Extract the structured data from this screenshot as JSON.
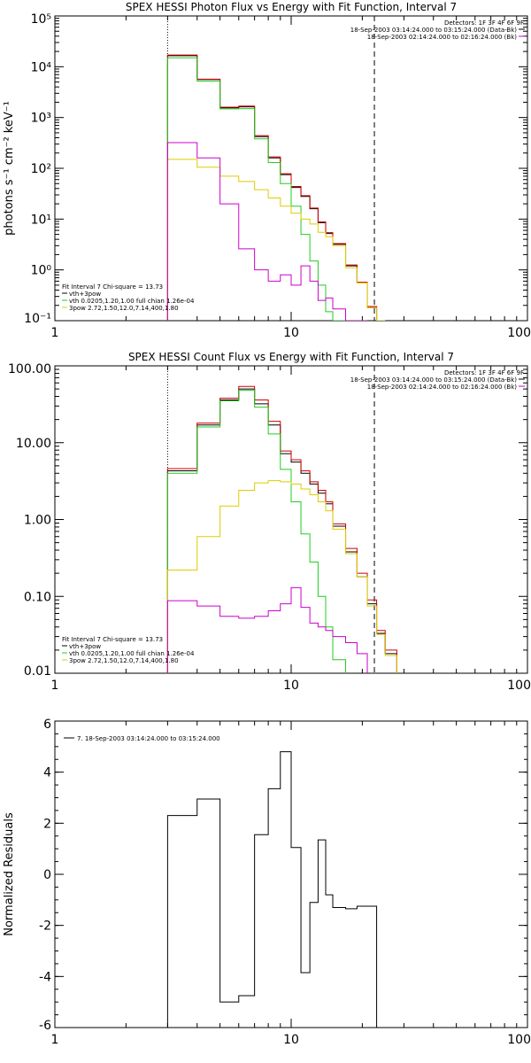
{
  "chart_data": [
    {
      "type": "line",
      "title": "SPEX HESSI Photon Flux vs Energy with Fit Function, Interval 7",
      "ylabel": "photons s⁻¹ cm⁻² keV⁻¹",
      "xlabel": "",
      "xscale": "log",
      "yscale": "log",
      "xlim": [
        1,
        100
      ],
      "ylim": [
        0.1,
        100000
      ],
      "x_ticks": [
        1,
        10,
        100
      ],
      "x_tick_labels": [
        "1",
        "10",
        "100"
      ],
      "y_ticks": [
        0.1,
        1,
        10,
        100,
        1000,
        10000,
        100000
      ],
      "y_tick_labels": [
        "10⁻¹",
        "10⁰",
        "10¹",
        "10²",
        "10³",
        "10⁴",
        "10⁵"
      ],
      "vlines": [
        {
          "x": 3.0,
          "style": "dotted"
        },
        {
          "x": 22.5,
          "style": "dashed"
        }
      ],
      "bin_edges": [
        3,
        4,
        5,
        6,
        7,
        8,
        9,
        10,
        11,
        12,
        13,
        14,
        15,
        17,
        19,
        21,
        23,
        25
      ],
      "series": [
        {
          "name": "vth+3pow",
          "color": "#000000",
          "values": [
            16500,
            5600,
            1550,
            1620,
            420,
            160,
            75,
            42,
            28,
            16,
            8.5,
            5.2,
            3.2,
            1.2,
            0.55,
            0.18,
            0.075
          ]
        },
        {
          "color": "#cc0000",
          "values": [
            17000,
            5700,
            1600,
            1680,
            440,
            168,
            78,
            44,
            29,
            16.5,
            8.8,
            5.4,
            3.3,
            1.25,
            0.57,
            0.19,
            0.078
          ]
        },
        {
          "name": "vth 0.0205,1.20,1.00 full chian 1.26e-04",
          "color": "#22cc22",
          "values": [
            15000,
            5200,
            1480,
            1500,
            380,
            130,
            50,
            18,
            5,
            1.5,
            0.5,
            0.15,
            0.05,
            null,
            null,
            null,
            null
          ]
        },
        {
          "name": "3pow 2.72,1.50,12.0,7.14,400,1.80",
          "color": "#ddcc00",
          "values": [
            150,
            105,
            70,
            55,
            38,
            26,
            18,
            13,
            10,
            8,
            5.5,
            4.5,
            3.0,
            1.1,
            0.55,
            0.18,
            0.08
          ]
        },
        {
          "color": "#cc00cc",
          "values": [
            320,
            160,
            20,
            2.6,
            1.0,
            0.6,
            0.8,
            0.5,
            1.2,
            0.6,
            0.25,
            0.28,
            0.17,
            0.1,
            0.05,
            null,
            null
          ]
        }
      ],
      "legend_tr": [
        "Detectors: 1F 3F 4F 6F 9F",
        "18-Sep-2003 03:14:24.000 to 03:15:24.000 (Data-Bk)",
        "18-Sep-2003 02:14:24.000 to 02:16:24.000 (Bk)"
      ],
      "legend_tr_colors": [
        "",
        "#000000",
        "#cc00cc"
      ],
      "legend_bl_header": "Fit Interval 7    Chi-square = 13.73"
    },
    {
      "type": "line",
      "title": "SPEX HESSI Count Flux vs Energy with Fit Function, Interval 7",
      "xlabel": "",
      "ylabel": "",
      "xscale": "log",
      "yscale": "log",
      "xlim": [
        1,
        100
      ],
      "ylim": [
        0.01,
        100
      ],
      "x_ticks": [
        1,
        10,
        100
      ],
      "x_tick_labels": [
        "1",
        "10",
        "100"
      ],
      "y_ticks": [
        0.01,
        0.1,
        1,
        10,
        100
      ],
      "y_tick_labels": [
        "0.01",
        "0.10",
        "1.00",
        "10.00",
        "100.00"
      ],
      "vlines": [
        {
          "x": 3.0,
          "style": "dotted"
        },
        {
          "x": 22.5,
          "style": "dashed"
        }
      ],
      "bin_edges": [
        3,
        4,
        5,
        6,
        7,
        8,
        9,
        10,
        11,
        12,
        13,
        14,
        15,
        17,
        19,
        21,
        23,
        25,
        28
      ],
      "series": [
        {
          "name": "vth+3pow",
          "color": "#000000",
          "values": [
            4.3,
            17,
            36,
            50,
            32,
            17,
            7.2,
            5.6,
            4.0,
            2.9,
            2.2,
            1.6,
            0.82,
            0.38,
            0.18,
            0.08,
            0.033,
            0.018
          ]
        },
        {
          "color": "#cc0000",
          "values": [
            4.6,
            18,
            38,
            54,
            36,
            19,
            7.8,
            6.0,
            4.3,
            3.1,
            2.4,
            1.7,
            0.88,
            0.42,
            0.2,
            0.09,
            0.036,
            0.02
          ]
        },
        {
          "name": "vth 0.0205,1.20,1.00 full chian 1.26e-04",
          "color": "#22cc22",
          "values": [
            4.0,
            16,
            35,
            48,
            29,
            13,
            4.5,
            1.7,
            0.65,
            0.28,
            0.1,
            0.04,
            0.015,
            null,
            null,
            null,
            null,
            null
          ]
        },
        {
          "name": "3pow 2.72,1.50,12.0,7.14,400,1.80",
          "color": "#ddcc00",
          "values": [
            0.22,
            0.6,
            1.5,
            2.4,
            3.0,
            3.2,
            3.1,
            2.9,
            2.5,
            2.1,
            1.7,
            1.3,
            0.75,
            0.36,
            0.18,
            0.075,
            0.032,
            0.017
          ]
        },
        {
          "color": "#cc00cc",
          "values": [
            0.088,
            0.075,
            0.055,
            0.052,
            0.055,
            0.065,
            0.08,
            0.13,
            0.072,
            0.045,
            0.04,
            0.036,
            0.03,
            0.025,
            0.018,
            null,
            null,
            null
          ]
        }
      ],
      "legend_tr": [
        "Detectors: 1F 3F 4F 6F 9F",
        "18-Sep-2003 03:14:24.000 to 03:15:24.000 (Data-Bk)",
        "18-Sep-2003 02:14:24.000 to 02:16:24.000 (Bk)"
      ],
      "legend_tr_colors": [
        "",
        "#000000",
        "#cc00cc"
      ],
      "legend_bl_header": "Fit Interval 7    Chi-square = 13.73"
    },
    {
      "type": "line",
      "title": "",
      "ylabel": "Normalized Residuals",
      "xlabel": "",
      "xscale": "log",
      "yscale": "linear",
      "xlim": [
        1,
        100
      ],
      "ylim": [
        -6,
        6
      ],
      "x_ticks": [
        1,
        10,
        100
      ],
      "x_tick_labels": [
        "1",
        "10",
        "100"
      ],
      "y_ticks": [
        -6,
        -4,
        -2,
        0,
        2,
        4,
        6
      ],
      "y_tick_labels": [
        "-6",
        "-4",
        "-2",
        "0",
        "2",
        "4",
        "6"
      ],
      "bin_edges": [
        3,
        4,
        5,
        6,
        7,
        8,
        9,
        10,
        11,
        12,
        13,
        14,
        15,
        17,
        19,
        21,
        23
      ],
      "series": [
        {
          "name": "7. 18-Sep-2003 03:14:24.000 to 03:15:24.000",
          "color": "#000000",
          "values": [
            2.3,
            2.95,
            -5.0,
            -4.75,
            1.55,
            3.35,
            4.8,
            1.05,
            -3.85,
            -1.1,
            1.35,
            -0.8,
            -1.3,
            -1.35,
            -1.25,
            -1.25
          ]
        }
      ]
    }
  ]
}
